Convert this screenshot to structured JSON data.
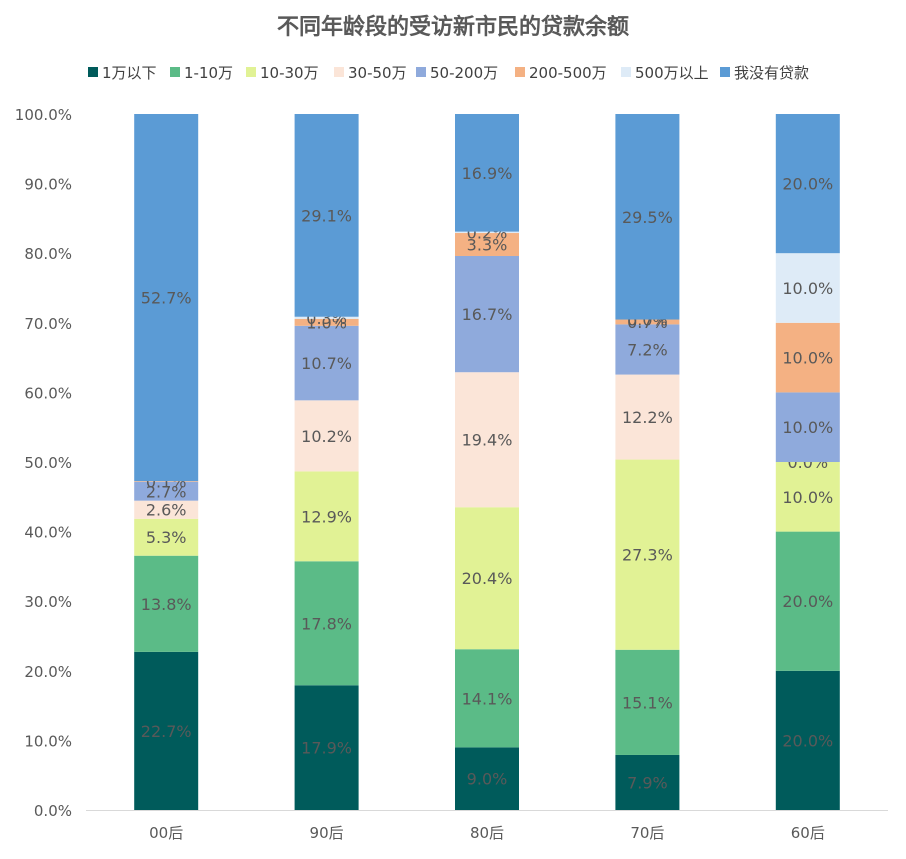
{
  "chart_data": {
    "type": "bar",
    "stacked": true,
    "percent": true,
    "title": "不同年龄段的受访新市民的贷款余额",
    "categories": [
      "00后",
      "90后",
      "80后",
      "70后",
      "60后"
    ],
    "ylim": [
      0,
      100
    ],
    "yticks": [
      "0.0%",
      "10.0%",
      "20.0%",
      "30.0%",
      "40.0%",
      "50.0%",
      "60.0%",
      "70.0%",
      "80.0%",
      "90.0%",
      "100.0%"
    ],
    "legend_position": "top",
    "grid": false,
    "series": [
      {
        "name": "1万以下",
        "color": "#005b5b",
        "values": [
          22.7,
          17.9,
          9.0,
          7.9,
          20.0
        ],
        "labels": [
          "22.7%",
          "17.9%",
          "9.0%",
          "7.9%",
          "20.0%"
        ]
      },
      {
        "name": "1-10万",
        "color": "#5bbb87",
        "values": [
          13.8,
          17.8,
          14.1,
          15.1,
          20.0
        ],
        "labels": [
          "13.8%",
          "17.8%",
          "14.1%",
          "15.1%",
          "20.0%"
        ]
      },
      {
        "name": "10-30万",
        "color": "#e1f295",
        "values": [
          5.3,
          12.9,
          20.4,
          27.3,
          10.0
        ],
        "labels": [
          "5.3%",
          "12.9%",
          "20.4%",
          "27.3%",
          "10.0%"
        ]
      },
      {
        "name": "30-50万",
        "color": "#fbe5d8",
        "values": [
          2.6,
          10.2,
          19.4,
          12.2,
          0.0
        ],
        "labels": [
          "2.6%",
          "10.2%",
          "19.4%",
          "12.2%",
          "0.0%"
        ]
      },
      {
        "name": "50-200万",
        "color": "#8faadc",
        "values": [
          2.7,
          10.7,
          16.7,
          7.2,
          10.0
        ],
        "labels": [
          "2.7%",
          "10.7%",
          "16.7%",
          "7.2%",
          "10.0%"
        ]
      },
      {
        "name": "200-500万",
        "color": "#f4b183",
        "values": [
          0.1,
          1.0,
          3.3,
          0.7,
          10.0
        ],
        "labels": [
          "0.1%",
          "1.0%",
          "3.3%",
          "0.7%",
          "10.0%"
        ]
      },
      {
        "name": "500万以上",
        "color": "#deebf7",
        "values": [
          0.0,
          0.3,
          0.2,
          0.0,
          10.0
        ],
        "labels": [
          "",
          "0.3%",
          "0.2%",
          "0.0%",
          "10.0%"
        ]
      },
      {
        "name": "我没有贷款",
        "color": "#5b9bd5",
        "values": [
          52.7,
          29.1,
          16.9,
          29.5,
          20.0
        ],
        "labels": [
          "52.7%",
          "29.1%",
          "16.9%",
          "29.5%",
          "20.0%"
        ]
      }
    ]
  }
}
